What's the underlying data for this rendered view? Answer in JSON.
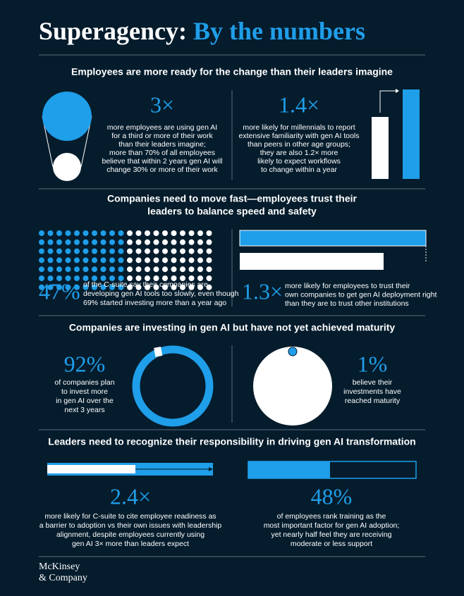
{
  "header": {
    "title_lead": "Superagency:",
    "title_accent": "By the numbers"
  },
  "sections": [
    {
      "heading": [
        "Employees are more ready for the change than their leaders imagine"
      ],
      "stats": [
        {
          "figure": "3×",
          "text": [
            "more employees are using gen AI",
            "for a third or more of their work",
            "than their leaders imagine;",
            "more than 70% of all employees",
            "believe that within 2 years gen AI will",
            "change 30% or more of their work"
          ]
        },
        {
          "figure": "1.4×",
          "text": [
            "more likely for millennials to report",
            "extensive familiarity with gen AI tools",
            "than peers in other age groups;",
            "they are also 1.2× more",
            "likely to expect workflows",
            "to change within a year"
          ]
        }
      ]
    },
    {
      "heading": [
        "Companies need to move fast—employees trust their",
        "leaders to balance speed and safety"
      ],
      "stats": [
        {
          "figure": "47%",
          "text": [
            "of the C-suite say their companies are",
            "developing gen AI tools too slowly, even though",
            "69% started investing more than a year ago"
          ]
        },
        {
          "figure": "1.3×",
          "text": [
            "more likely for employees to trust their",
            "own companies to get gen AI deployment right",
            "than they are to trust other institutions"
          ]
        }
      ]
    },
    {
      "heading": [
        "Companies are investing in gen AI but have not yet achieved maturity"
      ],
      "stats": [
        {
          "figure": "92%",
          "text": [
            "of companies plan",
            "to invest more",
            "in gen AI over the",
            "next 3 years"
          ]
        },
        {
          "figure": "1%",
          "text": [
            "believe their",
            "investments have",
            "reached maturity"
          ]
        }
      ]
    },
    {
      "heading": [
        "Leaders need to recognize their responsibility in driving gen AI transformation"
      ],
      "stats": [
        {
          "figure": "2.4×",
          "text": [
            "more likely for C-suite to cite employee readiness as",
            "a barrier to adoption vs their own issues with leadership",
            "alignment, despite employees currently using",
            "gen AI 3× more than leaders expect"
          ]
        },
        {
          "figure": "48%",
          "text": [
            "of employees rank training as the",
            "most important factor for gen AI adoption;",
            "yet nearly half feel they are receiving",
            "moderate or less support"
          ]
        }
      ]
    }
  ],
  "footer": {
    "logo": [
      "McKinsey",
      "& Company"
    ]
  }
}
